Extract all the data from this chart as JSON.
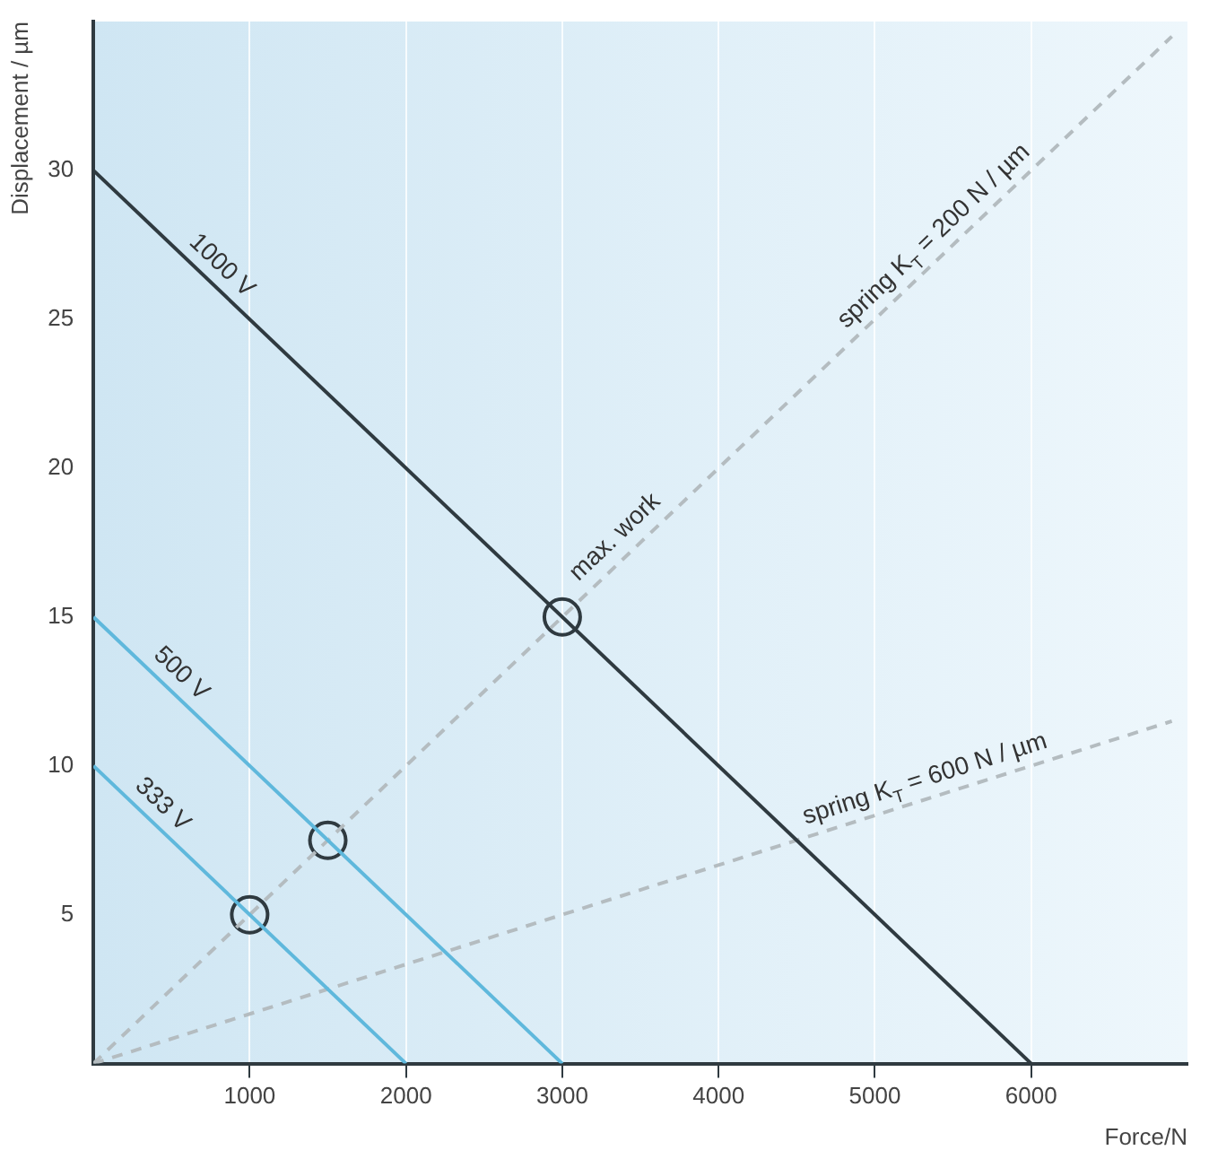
{
  "chart_data": {
    "type": "line",
    "xlabel": "Force/N",
    "ylabel": "Displacement / µm",
    "xlim": [
      0,
      7000
    ],
    "ylim": [
      0,
      35
    ],
    "xticks": [
      1000,
      2000,
      3000,
      4000,
      5000,
      6000
    ],
    "yticks": [
      5,
      10,
      15,
      20,
      25,
      30
    ],
    "grid": "x",
    "legend": false,
    "marker": "none",
    "series": [
      {
        "name": "1000 V",
        "color": "#2f3a40",
        "x": [
          0,
          6000
        ],
        "values": [
          30,
          0
        ]
      },
      {
        "name": "500 V",
        "color": "#5fb8dc",
        "x": [
          0,
          3000
        ],
        "values": [
          15,
          0
        ]
      },
      {
        "name": "333 V",
        "color": "#5fb8dc",
        "x": [
          0,
          2000
        ],
        "values": [
          10,
          0
        ]
      },
      {
        "name": "spring K$_{T}$ = 200 N / µm",
        "color": "#b4bcc0",
        "line_style": "dashed",
        "x": [
          0,
          6900
        ],
        "values": [
          0,
          34.5
        ]
      },
      {
        "name": "spring K$_{T}$ = 600 N / µm",
        "color": "#b4bcc0",
        "line_style": "dashed",
        "x": [
          0,
          6900
        ],
        "values": [
          0,
          11.5
        ]
      },
      {
        "type": "scatter",
        "marker": "circle",
        "color": "#2f3a40",
        "x": [
          1000,
          1500,
          3000
        ],
        "values": [
          5,
          7.5,
          15
        ]
      }
    ],
    "annotations": [
      {
        "text": "max. work",
        "x": 3000,
        "y": 15
      }
    ]
  }
}
